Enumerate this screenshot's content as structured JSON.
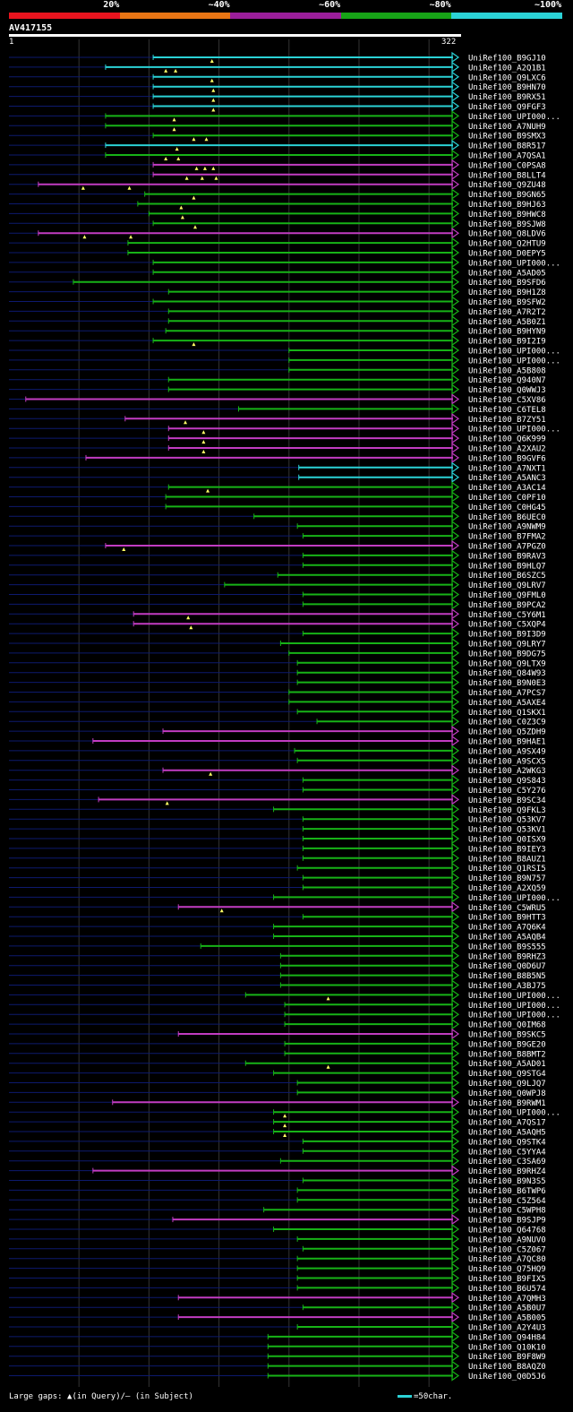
{
  "chart_data": {
    "type": "alignment-map",
    "title": "AV417155",
    "query_length": 322,
    "axis_labels": [
      "1",
      "322"
    ],
    "identity_legend": [
      {
        "label": "20%",
        "color": "#e8141e"
      },
      {
        "label": "~40%",
        "color": "#e87514"
      },
      {
        "label": "~60%",
        "color": "#9b1e9b"
      },
      {
        "label": "~80%",
        "color": "#17a317"
      },
      {
        "label": "~100%",
        "color": "#2bd2d6"
      }
    ],
    "class_colors": {
      "c": "#2bd2d6",
      "g": "#17b317",
      "p": "#c23cc2"
    },
    "footer": "Large gaps: ▲(in Query)/– (in Subject)",
    "scale_label": "=50char.",
    "hits": [
      {
        "id": "UniRef100_B9GJ10",
        "s": 104,
        "e": 322,
        "c": "c",
        "m": [
          146
        ]
      },
      {
        "id": "UniRef100_A2Q1B1",
        "s": 70,
        "e": 322,
        "c": "c",
        "m": [
          113,
          120
        ]
      },
      {
        "id": "UniRef100_Q9LXC6",
        "s": 104,
        "e": 322,
        "c": "c",
        "m": [
          146
        ]
      },
      {
        "id": "UniRef100_B9HN70",
        "s": 104,
        "e": 322,
        "c": "c",
        "m": [
          147
        ]
      },
      {
        "id": "UniRef100_B9RX51",
        "s": 104,
        "e": 322,
        "c": "c",
        "m": [
          147
        ]
      },
      {
        "id": "UniRef100_Q9FGF3",
        "s": 104,
        "e": 322,
        "c": "c",
        "m": [
          147
        ]
      },
      {
        "id": "UniRef100_UPI000...",
        "s": 70,
        "e": 322,
        "c": "g",
        "m": [
          119
        ]
      },
      {
        "id": "UniRef100_A7NUH9",
        "s": 70,
        "e": 322,
        "c": "g",
        "m": [
          119
        ]
      },
      {
        "id": "UniRef100_B9SMX3",
        "s": 104,
        "e": 322,
        "c": "g",
        "m": [
          133,
          142
        ]
      },
      {
        "id": "UniRef100_B8R517",
        "s": 70,
        "e": 322,
        "c": "c",
        "m": [
          121
        ]
      },
      {
        "id": "UniRef100_A7QSA1",
        "s": 70,
        "e": 322,
        "c": "g",
        "m": [
          113,
          122
        ]
      },
      {
        "id": "UniRef100_C0PSA8",
        "s": 104,
        "e": 322,
        "c": "p",
        "m": [
          135,
          141,
          147
        ]
      },
      {
        "id": "UniRef100_B8LLT4",
        "s": 104,
        "e": 322,
        "c": "p",
        "m": [
          128,
          139,
          149
        ]
      },
      {
        "id": "UniRef100_Q9ZU48",
        "s": 22,
        "e": 322,
        "c": "p",
        "m": [
          54,
          87
        ]
      },
      {
        "id": "UniRef100_B9GN65",
        "s": 98,
        "e": 322,
        "c": "g",
        "m": [
          133
        ]
      },
      {
        "id": "UniRef100_B9HJ63",
        "s": 93,
        "e": 322,
        "c": "g",
        "m": [
          124
        ]
      },
      {
        "id": "UniRef100_B9HWC8",
        "s": 101,
        "e": 322,
        "c": "g",
        "m": [
          125
        ]
      },
      {
        "id": "UniRef100_B9SJW8",
        "s": 104,
        "e": 322,
        "c": "g",
        "m": [
          134
        ]
      },
      {
        "id": "UniRef100_Q8LDV6",
        "s": 22,
        "e": 322,
        "c": "p",
        "m": [
          55,
          88
        ]
      },
      {
        "id": "UniRef100_Q2HTU9",
        "s": 86,
        "e": 322,
        "c": "g",
        "m": []
      },
      {
        "id": "UniRef100_D0EPY5",
        "s": 86,
        "e": 322,
        "c": "g",
        "m": []
      },
      {
        "id": "UniRef100_UPI000...",
        "s": 104,
        "e": 322,
        "c": "g",
        "m": []
      },
      {
        "id": "UniRef100_A5AD05",
        "s": 104,
        "e": 322,
        "c": "g",
        "m": []
      },
      {
        "id": "UniRef100_B9SFD6",
        "s": 47,
        "e": 322,
        "c": "g",
        "m": []
      },
      {
        "id": "UniRef100_B9H1Z8",
        "s": 115,
        "e": 322,
        "c": "g",
        "m": []
      },
      {
        "id": "UniRef100_B9SFW2",
        "s": 104,
        "e": 322,
        "c": "g",
        "m": []
      },
      {
        "id": "UniRef100_A7R2T2",
        "s": 115,
        "e": 322,
        "c": "g",
        "m": []
      },
      {
        "id": "UniRef100_A5B0Z1",
        "s": 115,
        "e": 322,
        "c": "g",
        "m": []
      },
      {
        "id": "UniRef100_B9HYN9",
        "s": 113,
        "e": 322,
        "c": "g",
        "m": []
      },
      {
        "id": "UniRef100_B9I2I9",
        "s": 104,
        "e": 322,
        "c": "g",
        "m": [
          133
        ]
      },
      {
        "id": "UniRef100_UPI000...",
        "s": 201,
        "e": 322,
        "c": "g",
        "m": []
      },
      {
        "id": "UniRef100_UPI000...",
        "s": 201,
        "e": 322,
        "c": "g",
        "m": []
      },
      {
        "id": "UniRef100_A5B808",
        "s": 201,
        "e": 322,
        "c": "g",
        "m": []
      },
      {
        "id": "UniRef100_Q940N7",
        "s": 115,
        "e": 322,
        "c": "g",
        "m": []
      },
      {
        "id": "UniRef100_Q0WWJ3",
        "s": 115,
        "e": 322,
        "c": "g",
        "m": []
      },
      {
        "id": "UniRef100_C5XV86",
        "s": 13,
        "e": 322,
        "c": "p",
        "m": []
      },
      {
        "id": "UniRef100_C6TEL8",
        "s": 165,
        "e": 322,
        "c": "g",
        "m": []
      },
      {
        "id": "UniRef100_B7ZY51",
        "s": 84,
        "e": 322,
        "c": "p",
        "m": [
          127
        ]
      },
      {
        "id": "UniRef100_UPI000...",
        "s": 115,
        "e": 322,
        "c": "p",
        "m": [
          140
        ]
      },
      {
        "id": "UniRef100_Q6K999",
        "s": 115,
        "e": 322,
        "c": "p",
        "m": [
          140
        ]
      },
      {
        "id": "UniRef100_A2XAU2",
        "s": 115,
        "e": 322,
        "c": "p",
        "m": [
          140
        ]
      },
      {
        "id": "UniRef100_B9GVF6",
        "s": 56,
        "e": 322,
        "c": "p",
        "m": []
      },
      {
        "id": "UniRef100_A7NXT1",
        "s": 208,
        "e": 322,
        "c": "c",
        "m": []
      },
      {
        "id": "UniRef100_A5ANC3",
        "s": 208,
        "e": 322,
        "c": "c",
        "m": []
      },
      {
        "id": "UniRef100_A3AC14",
        "s": 115,
        "e": 322,
        "c": "g",
        "m": [
          143
        ]
      },
      {
        "id": "UniRef100_C0PF10",
        "s": 113,
        "e": 322,
        "c": "g",
        "m": []
      },
      {
        "id": "UniRef100_C0HG45",
        "s": 113,
        "e": 322,
        "c": "g",
        "m": []
      },
      {
        "id": "UniRef100_B6UEC0",
        "s": 176,
        "e": 322,
        "c": "g",
        "m": []
      },
      {
        "id": "UniRef100_A9NWM9",
        "s": 207,
        "e": 322,
        "c": "g",
        "m": []
      },
      {
        "id": "UniRef100_B7FMA2",
        "s": 211,
        "e": 322,
        "c": "g",
        "m": []
      },
      {
        "id": "UniRef100_A7PGZ0",
        "s": 70,
        "e": 322,
        "c": "p",
        "m": [
          83
        ]
      },
      {
        "id": "UniRef100_B9RAV3",
        "s": 211,
        "e": 322,
        "c": "g",
        "m": []
      },
      {
        "id": "UniRef100_B9HLQ7",
        "s": 211,
        "e": 322,
        "c": "g",
        "m": []
      },
      {
        "id": "UniRef100_B6SZC5",
        "s": 193,
        "e": 322,
        "c": "g",
        "m": []
      },
      {
        "id": "UniRef100_Q9LRV7",
        "s": 155,
        "e": 322,
        "c": "g",
        "m": []
      },
      {
        "id": "UniRef100_Q9FML0",
        "s": 211,
        "e": 322,
        "c": "g",
        "m": []
      },
      {
        "id": "UniRef100_B9PCA2",
        "s": 211,
        "e": 322,
        "c": "g",
        "m": []
      },
      {
        "id": "UniRef100_C5Y6M1",
        "s": 90,
        "e": 322,
        "c": "p",
        "m": [
          129
        ]
      },
      {
        "id": "UniRef100_C5XQP4",
        "s": 90,
        "e": 322,
        "c": "p",
        "m": [
          131
        ]
      },
      {
        "id": "UniRef100_B9I3D9",
        "s": 211,
        "e": 322,
        "c": "g",
        "m": []
      },
      {
        "id": "UniRef100_Q9LRY7",
        "s": 195,
        "e": 322,
        "c": "g",
        "m": []
      },
      {
        "id": "UniRef100_B9DG75",
        "s": 201,
        "e": 322,
        "c": "g",
        "m": []
      },
      {
        "id": "UniRef100_Q9LTX9",
        "s": 207,
        "e": 322,
        "c": "g",
        "m": []
      },
      {
        "id": "UniRef100_Q84W93",
        "s": 207,
        "e": 322,
        "c": "g",
        "m": []
      },
      {
        "id": "UniRef100_B9N0E3",
        "s": 207,
        "e": 322,
        "c": "g",
        "m": []
      },
      {
        "id": "UniRef100_A7PCS7",
        "s": 201,
        "e": 322,
        "c": "g",
        "m": []
      },
      {
        "id": "UniRef100_A5AXE4",
        "s": 201,
        "e": 322,
        "c": "g",
        "m": []
      },
      {
        "id": "UniRef100_Q1SKX1",
        "s": 207,
        "e": 322,
        "c": "g",
        "m": []
      },
      {
        "id": "UniRef100_C0Z3C9",
        "s": 221,
        "e": 322,
        "c": "g",
        "m": []
      },
      {
        "id": "UniRef100_Q5ZDH9",
        "s": 111,
        "e": 322,
        "c": "p",
        "m": []
      },
      {
        "id": "UniRef100_B9HAE1",
        "s": 61,
        "e": 322,
        "c": "p",
        "m": []
      },
      {
        "id": "UniRef100_A9SX49",
        "s": 205,
        "e": 322,
        "c": "g",
        "m": []
      },
      {
        "id": "UniRef100_A9SCX5",
        "s": 207,
        "e": 322,
        "c": "g",
        "m": []
      },
      {
        "id": "UniRef100_A2WKG3",
        "s": 111,
        "e": 322,
        "c": "p",
        "m": [
          145
        ]
      },
      {
        "id": "UniRef100_Q9S843",
        "s": 211,
        "e": 322,
        "c": "g",
        "m": []
      },
      {
        "id": "UniRef100_C5Y276",
        "s": 211,
        "e": 322,
        "c": "g",
        "m": []
      },
      {
        "id": "UniRef100_B9SC34",
        "s": 65,
        "e": 322,
        "c": "p",
        "m": [
          114
        ]
      },
      {
        "id": "UniRef100_Q9FKL3",
        "s": 190,
        "e": 322,
        "c": "g",
        "m": []
      },
      {
        "id": "UniRef100_Q53KV7",
        "s": 211,
        "e": 322,
        "c": "g",
        "m": []
      },
      {
        "id": "UniRef100_Q53KV1",
        "s": 211,
        "e": 322,
        "c": "g",
        "m": []
      },
      {
        "id": "UniRef100_Q0ISX9",
        "s": 211,
        "e": 322,
        "c": "g",
        "m": []
      },
      {
        "id": "UniRef100_B9IEY3",
        "s": 211,
        "e": 322,
        "c": "g",
        "m": []
      },
      {
        "id": "UniRef100_B8AUZ1",
        "s": 211,
        "e": 322,
        "c": "g",
        "m": []
      },
      {
        "id": "UniRef100_Q1RSI5",
        "s": 207,
        "e": 322,
        "c": "g",
        "m": []
      },
      {
        "id": "UniRef100_B9N757",
        "s": 211,
        "e": 322,
        "c": "g",
        "m": []
      },
      {
        "id": "UniRef100_A2XQ59",
        "s": 211,
        "e": 322,
        "c": "g",
        "m": []
      },
      {
        "id": "UniRef100_UPI000...",
        "s": 190,
        "e": 322,
        "c": "g",
        "m": []
      },
      {
        "id": "UniRef100_C5WRU5",
        "s": 122,
        "e": 322,
        "c": "p",
        "m": [
          153
        ]
      },
      {
        "id": "UniRef100_B9HTT3",
        "s": 211,
        "e": 322,
        "c": "g",
        "m": []
      },
      {
        "id": "UniRef100_A7Q6K4",
        "s": 190,
        "e": 322,
        "c": "g",
        "m": []
      },
      {
        "id": "UniRef100_A5AQB4",
        "s": 190,
        "e": 322,
        "c": "g",
        "m": []
      },
      {
        "id": "UniRef100_B9S555",
        "s": 138,
        "e": 322,
        "c": "g",
        "m": []
      },
      {
        "id": "UniRef100_B9RHZ3",
        "s": 195,
        "e": 322,
        "c": "g",
        "m": []
      },
      {
        "id": "UniRef100_Q0D6U7",
        "s": 195,
        "e": 322,
        "c": "g",
        "m": []
      },
      {
        "id": "UniRef100_B8B5N5",
        "s": 195,
        "e": 322,
        "c": "g",
        "m": []
      },
      {
        "id": "UniRef100_A3BJ75",
        "s": 195,
        "e": 322,
        "c": "g",
        "m": []
      },
      {
        "id": "UniRef100_UPI000...",
        "s": 170,
        "e": 322,
        "c": "g",
        "m": [
          229
        ]
      },
      {
        "id": "UniRef100_UPI000...",
        "s": 198,
        "e": 322,
        "c": "g",
        "m": []
      },
      {
        "id": "UniRef100_UPI000...",
        "s": 198,
        "e": 322,
        "c": "g",
        "m": []
      },
      {
        "id": "UniRef100_Q0IM68",
        "s": 198,
        "e": 322,
        "c": "g",
        "m": []
      },
      {
        "id": "UniRef100_B9SKC5",
        "s": 122,
        "e": 322,
        "c": "p",
        "m": []
      },
      {
        "id": "UniRef100_B9GE20",
        "s": 198,
        "e": 322,
        "c": "g",
        "m": []
      },
      {
        "id": "UniRef100_B8BMT2",
        "s": 198,
        "e": 322,
        "c": "g",
        "m": []
      },
      {
        "id": "UniRef100_A5AD01",
        "s": 170,
        "e": 322,
        "c": "g",
        "m": [
          229
        ]
      },
      {
        "id": "UniRef100_Q9STG4",
        "s": 190,
        "e": 322,
        "c": "g",
        "m": []
      },
      {
        "id": "UniRef100_Q9LJQ7",
        "s": 207,
        "e": 322,
        "c": "g",
        "m": []
      },
      {
        "id": "UniRef100_Q0WPJ8",
        "s": 207,
        "e": 322,
        "c": "g",
        "m": []
      },
      {
        "id": "UniRef100_B9RWM1",
        "s": 75,
        "e": 322,
        "c": "p",
        "m": []
      },
      {
        "id": "UniRef100_UPI000...",
        "s": 190,
        "e": 322,
        "c": "g",
        "m": [
          198
        ]
      },
      {
        "id": "UniRef100_A7QS17",
        "s": 190,
        "e": 322,
        "c": "g",
        "m": [
          198
        ]
      },
      {
        "id": "UniRef100_A5AQH5",
        "s": 190,
        "e": 322,
        "c": "g",
        "m": [
          198
        ]
      },
      {
        "id": "UniRef100_Q9STK4",
        "s": 211,
        "e": 322,
        "c": "g",
        "m": []
      },
      {
        "id": "UniRef100_C5YYA4",
        "s": 211,
        "e": 322,
        "c": "g",
        "m": []
      },
      {
        "id": "UniRef100_C3SA69",
        "s": 195,
        "e": 322,
        "c": "g",
        "m": []
      },
      {
        "id": "UniRef100_B9RHZ4",
        "s": 61,
        "e": 322,
        "c": "p",
        "m": []
      },
      {
        "id": "UniRef100_B9N3S5",
        "s": 211,
        "e": 322,
        "c": "g",
        "m": []
      },
      {
        "id": "UniRef100_B6TWP6",
        "s": 207,
        "e": 322,
        "c": "g",
        "m": []
      },
      {
        "id": "UniRef100_C5Z564",
        "s": 207,
        "e": 322,
        "c": "g",
        "m": []
      },
      {
        "id": "UniRef100_C5WPH8",
        "s": 183,
        "e": 322,
        "c": "g",
        "m": []
      },
      {
        "id": "UniRef100_B9SJP9",
        "s": 118,
        "e": 322,
        "c": "p",
        "m": []
      },
      {
        "id": "UniRef100_Q64768",
        "s": 190,
        "e": 322,
        "c": "g",
        "m": []
      },
      {
        "id": "UniRef100_A9NUV0",
        "s": 207,
        "e": 322,
        "c": "g",
        "m": []
      },
      {
        "id": "UniRef100_C5Z067",
        "s": 211,
        "e": 322,
        "c": "g",
        "m": []
      },
      {
        "id": "UniRef100_A7QC80",
        "s": 207,
        "e": 322,
        "c": "g",
        "m": []
      },
      {
        "id": "UniRef100_Q75HQ9",
        "s": 207,
        "e": 322,
        "c": "g",
        "m": []
      },
      {
        "id": "UniRef100_B9FIX5",
        "s": 207,
        "e": 322,
        "c": "g",
        "m": []
      },
      {
        "id": "UniRef100_B6U574",
        "s": 207,
        "e": 322,
        "c": "g",
        "m": []
      },
      {
        "id": "UniRef100_A7QMH3",
        "s": 122,
        "e": 322,
        "c": "p",
        "m": []
      },
      {
        "id": "UniRef100_A5B0U7",
        "s": 211,
        "e": 322,
        "c": "g",
        "m": []
      },
      {
        "id": "UniRef100_A5B005",
        "s": 122,
        "e": 322,
        "c": "p",
        "m": []
      },
      {
        "id": "UniRef100_A2Y4U3",
        "s": 207,
        "e": 322,
        "c": "g",
        "m": []
      },
      {
        "id": "UniRef100_Q94H84",
        "s": 186,
        "e": 322,
        "c": "g",
        "m": []
      },
      {
        "id": "UniRef100_Q10K10",
        "s": 186,
        "e": 322,
        "c": "g",
        "m": []
      },
      {
        "id": "UniRef100_B9F8W9",
        "s": 186,
        "e": 322,
        "c": "g",
        "m": []
      },
      {
        "id": "UniRef100_B8AQZ0",
        "s": 186,
        "e": 322,
        "c": "g",
        "m": []
      },
      {
        "id": "UniRef100_Q0D5J6",
        "s": 186,
        "e": 322,
        "c": "g",
        "m": []
      }
    ]
  }
}
